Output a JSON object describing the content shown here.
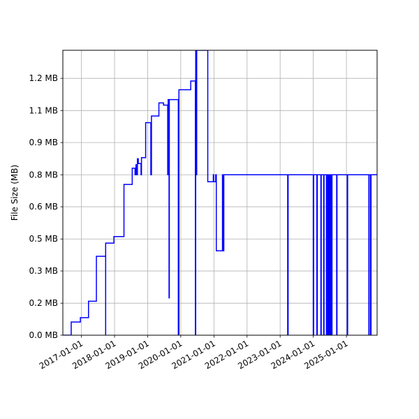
{
  "chart_data": {
    "type": "line",
    "title": "",
    "xlabel": "",
    "ylabel": "File Size (MB)",
    "grid": true,
    "line_color": "#0000ff",
    "x_range": [
      "2016-06-10",
      "2025-12-05"
    ],
    "ylim": [
      0,
      1.3
    ],
    "x_ticks": [
      "2017-01-01",
      "2018-01-01",
      "2019-01-01",
      "2020-01-01",
      "2021-01-01",
      "2022-01-01",
      "2023-01-01",
      "2024-01-01",
      "2025-01-01"
    ],
    "y_ticks": [
      {
        "value": 0.0,
        "label": "0.0 MB"
      },
      {
        "value": 0.146,
        "label": "0.2 MB"
      },
      {
        "value": 0.293,
        "label": "0.3 MB"
      },
      {
        "value": 0.439,
        "label": "0.5 MB"
      },
      {
        "value": 0.586,
        "label": "0.6 MB"
      },
      {
        "value": 0.732,
        "label": "0.8 MB"
      },
      {
        "value": 0.879,
        "label": "0.9 MB"
      },
      {
        "value": 1.025,
        "label": "1.1 MB"
      },
      {
        "value": 1.172,
        "label": "1.2 MB"
      }
    ],
    "series": [
      {
        "points": [
          [
            "2016-06-10",
            0.0
          ],
          [
            "2016-09-10",
            0.0
          ],
          [
            "2016-09-10",
            0.06
          ],
          [
            "2016-12-20",
            0.06
          ],
          [
            "2016-12-20",
            0.08
          ],
          [
            "2017-03-20",
            0.08
          ],
          [
            "2017-03-20",
            0.155
          ],
          [
            "2017-06-15",
            0.155
          ],
          [
            "2017-06-15",
            0.36
          ],
          [
            "2017-09-25",
            0.36
          ],
          [
            "2017-09-25",
            0.0
          ],
          [
            "2017-09-25",
            0.42
          ],
          [
            "2017-12-25",
            0.42
          ],
          [
            "2017-12-25",
            0.45
          ],
          [
            "2018-04-15",
            0.45
          ],
          [
            "2018-04-15",
            0.688
          ],
          [
            "2018-07-15",
            0.688
          ],
          [
            "2018-07-15",
            0.762
          ],
          [
            "2018-08-15",
            0.762
          ],
          [
            "2018-08-15",
            0.732
          ],
          [
            "2018-08-25",
            0.732
          ],
          [
            "2018-08-25",
            0.778
          ],
          [
            "2018-09-05",
            0.778
          ],
          [
            "2018-09-05",
            0.732
          ],
          [
            "2018-09-10",
            0.732
          ],
          [
            "2018-09-10",
            0.805
          ],
          [
            "2018-09-20",
            0.805
          ],
          [
            "2018-09-20",
            0.783
          ],
          [
            "2018-10-20",
            0.783
          ],
          [
            "2018-10-20",
            0.732
          ],
          [
            "2018-10-25",
            0.732
          ],
          [
            "2018-10-25",
            0.81
          ],
          [
            "2018-12-10",
            0.81
          ],
          [
            "2018-12-10",
            0.97
          ],
          [
            "2019-02-05",
            0.97
          ],
          [
            "2019-02-05",
            0.732
          ],
          [
            "2019-02-12",
            0.732
          ],
          [
            "2019-02-12",
            1.0
          ],
          [
            "2019-05-05",
            1.0
          ],
          [
            "2019-05-05",
            1.06
          ],
          [
            "2019-06-25",
            1.06
          ],
          [
            "2019-06-25",
            1.05
          ],
          [
            "2019-08-10",
            1.05
          ],
          [
            "2019-08-10",
            0.732
          ],
          [
            "2019-08-15",
            0.732
          ],
          [
            "2019-08-15",
            1.075
          ],
          [
            "2019-08-25",
            1.075
          ],
          [
            "2019-08-25",
            0.17
          ],
          [
            "2019-08-28",
            0.17
          ],
          [
            "2019-08-28",
            1.075
          ],
          [
            "2019-12-05",
            1.075
          ],
          [
            "2019-12-05",
            0.0
          ],
          [
            "2019-12-12",
            0.0
          ],
          [
            "2019-12-12",
            1.12
          ],
          [
            "2020-04-20",
            1.12
          ],
          [
            "2020-04-20",
            1.16
          ],
          [
            "2020-06-10",
            1.16
          ],
          [
            "2020-06-10",
            0.0
          ],
          [
            "2020-06-14",
            0.0
          ],
          [
            "2020-06-14",
            1.3
          ],
          [
            "2020-06-20",
            1.3
          ],
          [
            "2020-06-20",
            0.732
          ],
          [
            "2020-06-25",
            0.732
          ],
          [
            "2020-06-25",
            1.3
          ],
          [
            "2020-10-25",
            1.3
          ],
          [
            "2020-10-25",
            0.7
          ],
          [
            "2020-12-25",
            0.7
          ],
          [
            "2020-12-25",
            0.732
          ],
          [
            "2020-12-30",
            0.732
          ],
          [
            "2020-12-30",
            0.7
          ],
          [
            "2021-01-20",
            0.7
          ],
          [
            "2021-01-20",
            0.732
          ],
          [
            "2021-01-27",
            0.732
          ],
          [
            "2021-01-27",
            0.385
          ],
          [
            "2021-04-05",
            0.385
          ],
          [
            "2021-04-05",
            0.732
          ],
          [
            "2021-04-12",
            0.732
          ],
          [
            "2021-04-12",
            0.385
          ],
          [
            "2021-04-20",
            0.385
          ],
          [
            "2021-04-20",
            0.732
          ],
          [
            "2023-03-25",
            0.732
          ],
          [
            "2023-03-25",
            0.0
          ],
          [
            "2023-03-30",
            0.0
          ],
          [
            "2023-03-30",
            0.732
          ],
          [
            "2024-01-01",
            0.732
          ],
          [
            "2024-01-01",
            0.0
          ],
          [
            "2024-01-05",
            0.0
          ],
          [
            "2024-01-05",
            0.732
          ],
          [
            "2024-02-10",
            0.732
          ],
          [
            "2024-02-10",
            0.0
          ],
          [
            "2024-02-14",
            0.0
          ],
          [
            "2024-02-14",
            0.732
          ],
          [
            "2024-03-25",
            0.732
          ],
          [
            "2024-03-25",
            0.0
          ],
          [
            "2024-03-29",
            0.0
          ],
          [
            "2024-03-29",
            0.732
          ],
          [
            "2024-04-25",
            0.732
          ],
          [
            "2024-04-25",
            0.0
          ],
          [
            "2024-04-29",
            0.0
          ],
          [
            "2024-04-29",
            0.732
          ],
          [
            "2024-05-25",
            0.732
          ],
          [
            "2024-05-25",
            0.0
          ],
          [
            "2024-05-29",
            0.0
          ],
          [
            "2024-05-29",
            0.732
          ],
          [
            "2024-06-10",
            0.732
          ],
          [
            "2024-06-10",
            0.0
          ],
          [
            "2024-06-14",
            0.0
          ],
          [
            "2024-06-14",
            0.732
          ],
          [
            "2024-06-25",
            0.732
          ],
          [
            "2024-06-25",
            0.0
          ],
          [
            "2024-06-29",
            0.0
          ],
          [
            "2024-06-29",
            0.732
          ],
          [
            "2024-07-10",
            0.732
          ],
          [
            "2024-07-10",
            0.0
          ],
          [
            "2024-07-14",
            0.0
          ],
          [
            "2024-07-14",
            0.732
          ],
          [
            "2024-07-22",
            0.732
          ],
          [
            "2024-07-22",
            0.0
          ],
          [
            "2024-07-26",
            0.0
          ],
          [
            "2024-07-26",
            0.732
          ],
          [
            "2024-09-15",
            0.732
          ],
          [
            "2024-09-15",
            0.0
          ],
          [
            "2024-09-19",
            0.0
          ],
          [
            "2024-09-19",
            0.732
          ],
          [
            "2025-01-10",
            0.732
          ],
          [
            "2025-01-10",
            0.0
          ],
          [
            "2025-01-14",
            0.0
          ],
          [
            "2025-01-14",
            0.732
          ],
          [
            "2025-09-05",
            0.732
          ],
          [
            "2025-09-05",
            0.0
          ],
          [
            "2025-09-09",
            0.0
          ],
          [
            "2025-09-09",
            0.732
          ],
          [
            "2025-09-25",
            0.732
          ],
          [
            "2025-09-25",
            0.0
          ],
          [
            "2025-09-29",
            0.0
          ],
          [
            "2025-09-29",
            0.732
          ],
          [
            "2025-12-05",
            0.732
          ]
        ]
      }
    ]
  }
}
